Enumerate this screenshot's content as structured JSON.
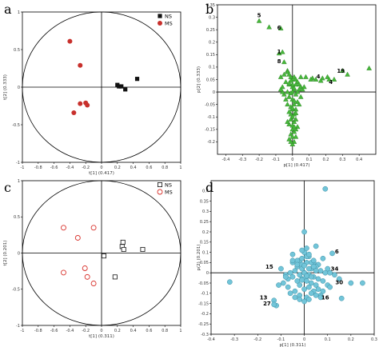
{
  "chart_data": [
    {
      "type": "scatter",
      "panel_label": "a",
      "xlabel": "t[1] (0.417)",
      "ylabel": "t[2] (0.333)",
      "xlim": [
        -1,
        1
      ],
      "ylim": [
        -1,
        1
      ],
      "xticks": [
        -1,
        -0.8,
        -0.6,
        -0.4,
        -0.2,
        0,
        0.2,
        0.4,
        0.6,
        0.8,
        1
      ],
      "yticks": [
        -1,
        -0.5,
        0,
        0.5,
        1
      ],
      "ellipse": "unit-circle",
      "legend_position": "top-right",
      "series": [
        {
          "name": "NS",
          "marker": "square",
          "color": "#111111",
          "x": [
            0.2,
            0.22,
            0.25,
            0.3,
            0.45
          ],
          "y": [
            0.03,
            0.01,
            0.01,
            -0.03,
            0.11
          ]
        },
        {
          "name": "MS",
          "marker": "circle",
          "color": "#c8302c",
          "x": [
            -0.4,
            -0.27,
            -0.27,
            -0.2,
            -0.18,
            -0.35
          ],
          "y": [
            0.61,
            0.29,
            -0.22,
            -0.21,
            -0.24,
            -0.34
          ]
        }
      ]
    },
    {
      "type": "scatter",
      "panel_label": "b",
      "xlabel": "p[1] (0.417)",
      "ylabel": "p[2] (0.333)",
      "xlim": [
        -0.45,
        0.5
      ],
      "ylim": [
        -0.25,
        0.35
      ],
      "xticks": [
        -0.4,
        -0.3,
        -0.2,
        -0.1,
        0,
        0.1,
        0.2,
        0.3,
        0.4
      ],
      "yticks": [
        -0.2,
        -0.15,
        -0.1,
        -0.05,
        0,
        0.05,
        0.1,
        0.15,
        0.2,
        0.25,
        0.3,
        0.35
      ],
      "marker": "triangle",
      "color": "#46b83a",
      "annotations": [
        {
          "text": "5",
          "x": -0.2,
          "y": 0.3
        },
        {
          "text": "6",
          "x": -0.08,
          "y": 0.25
        },
        {
          "text": "1",
          "x": -0.08,
          "y": 0.155
        },
        {
          "text": "8",
          "x": -0.08,
          "y": 0.115
        },
        {
          "text": "4",
          "x": 0.155,
          "y": 0.055
        },
        {
          "text": "19",
          "x": 0.29,
          "y": 0.078
        },
        {
          "text": "4",
          "x": 0.23,
          "y": 0.032
        }
      ],
      "points": {
        "x": [
          -0.2,
          -0.14,
          -0.07,
          -0.08,
          -0.06,
          -0.05,
          -0.03,
          0.05,
          0.08,
          0.12,
          0.14,
          0.18,
          0.21,
          0.25,
          0.3,
          0.33,
          0.46,
          0.22,
          0.17,
          0.11,
          -0.07,
          -0.05,
          -0.03,
          -0.02,
          -0.01,
          0.0,
          0.01,
          0.02,
          0.03,
          0.04,
          0.05,
          -0.04,
          -0.02,
          0.0,
          0.02,
          0.04,
          -0.06,
          -0.03,
          0.01,
          0.03,
          -0.05,
          -0.02,
          0.02,
          0.05,
          -0.04,
          0.0,
          0.03,
          -0.03,
          0.01,
          -0.01,
          0.0,
          0.02,
          -0.02,
          -0.01,
          0.01,
          0.04,
          -0.06,
          0.06,
          0.07,
          -0.07,
          0.0,
          -0.01,
          0.01,
          0.02,
          -0.02,
          0.03,
          -0.03,
          0.0,
          0.01,
          -0.01,
          0.02,
          0.0,
          -0.02,
          0.01,
          0.0,
          -0.01,
          0.02,
          0.0,
          0.01,
          -0.01,
          0.0,
          0.01,
          -0.01,
          0.0,
          0.02,
          -0.02,
          0.0,
          0.01
        ],
        "y": [
          0.285,
          0.26,
          0.255,
          0.155,
          0.16,
          0.12,
          0.085,
          0.06,
          0.06,
          0.055,
          0.05,
          0.055,
          0.06,
          0.05,
          0.085,
          0.07,
          0.095,
          0.05,
          0.045,
          0.05,
          0.06,
          0.07,
          0.08,
          0.07,
          0.06,
          0.05,
          0.06,
          0.05,
          0.04,
          0.03,
          0.02,
          0.04,
          0.03,
          0.02,
          0.03,
          0.01,
          0.02,
          0.0,
          0.01,
          0.0,
          -0.01,
          -0.02,
          -0.01,
          -0.02,
          -0.03,
          -0.03,
          -0.04,
          -0.05,
          -0.05,
          -0.06,
          -0.07,
          -0.07,
          -0.08,
          -0.09,
          -0.09,
          -0.05,
          0.0,
          0.01,
          0.02,
          0.01,
          -0.1,
          -0.11,
          -0.12,
          -0.11,
          -0.13,
          -0.14,
          -0.12,
          -0.15,
          -0.16,
          -0.17,
          -0.15,
          -0.18,
          -0.19,
          -0.2,
          -0.21,
          -0.2,
          -0.18,
          0.0,
          0.015,
          -0.005,
          0.03,
          -0.035,
          0.045,
          -0.065,
          -0.085,
          0.035,
          -0.135,
          -0.14
        ]
      }
    },
    {
      "type": "scatter",
      "panel_label": "c",
      "xlabel": "t[1] (0.311)",
      "ylabel": "t[2] (0.201)",
      "xlim": [
        -1,
        1
      ],
      "ylim": [
        -1,
        1
      ],
      "xticks": [
        -1,
        -0.8,
        -0.6,
        -0.4,
        -0.2,
        0,
        0.2,
        0.4,
        0.6,
        0.8,
        1
      ],
      "yticks": [
        -1,
        -0.5,
        0,
        0.5,
        1
      ],
      "ellipse": "unit-circle",
      "legend_position": "top-right",
      "series": [
        {
          "name": "NS",
          "marker": "open-square",
          "color": "#111111",
          "x": [
            0.27,
            0.26,
            0.28,
            0.52,
            0.03,
            0.17
          ],
          "y": [
            0.15,
            0.09,
            0.05,
            0.05,
            -0.04,
            -0.33
          ]
        },
        {
          "name": "MS",
          "marker": "open-circle",
          "color": "#d8312b",
          "x": [
            -0.48,
            -0.1,
            -0.3,
            -0.21,
            -0.48,
            -0.18,
            -0.1
          ],
          "y": [
            0.35,
            0.35,
            0.21,
            -0.21,
            -0.27,
            -0.33,
            -0.42
          ]
        }
      ]
    },
    {
      "type": "scatter",
      "panel_label": "d",
      "xlabel": "p[1] (0.311)",
      "ylabel": "p(2) (0.201)",
      "xlim": [
        -0.4,
        0.3
      ],
      "ylim": [
        -0.3,
        0.45
      ],
      "xticks": [
        -0.4,
        -0.3,
        -0.2,
        -0.1,
        0,
        0.1,
        0.2,
        0.3
      ],
      "yticks": [
        -0.3,
        -0.25,
        -0.2,
        -0.15,
        -0.1,
        -0.05,
        0,
        0.05,
        0.1,
        0.15,
        0.2,
        0.25,
        0.3,
        0.35,
        0.4
      ],
      "marker": "circle",
      "color": "#72c5d9",
      "annotations": [
        {
          "text": "6",
          "x": 0.14,
          "y": 0.095
        },
        {
          "text": "15",
          "x": -0.15,
          "y": 0.02
        },
        {
          "text": "34",
          "x": 0.13,
          "y": 0.01
        },
        {
          "text": "30",
          "x": 0.15,
          "y": -0.055
        },
        {
          "text": "13",
          "x": -0.175,
          "y": -0.13
        },
        {
          "text": "27",
          "x": -0.16,
          "y": -0.16
        },
        {
          "text": "16",
          "x": 0.09,
          "y": -0.13
        }
      ],
      "points": {
        "x": [
          0.09,
          0.0,
          0.05,
          0.12,
          -0.05,
          0.02,
          0.08,
          -0.02,
          0.04,
          0.1,
          0.15,
          0.2,
          0.25,
          -0.1,
          -0.13,
          -0.32,
          -0.12,
          -0.13,
          0.07,
          0.16,
          0.06,
          0.11,
          0.13,
          0.01,
          -0.01,
          -0.03,
          0.03,
          0.05,
          0.07,
          0.09,
          -0.06,
          -0.08,
          -0.04,
          0.0,
          0.02,
          0.04,
          0.06,
          0.08,
          0.1,
          -0.07,
          -0.05,
          -0.03,
          -0.01,
          0.01,
          0.03,
          0.05,
          -0.09,
          -0.07,
          -0.02,
          0.0,
          0.02,
          0.04,
          0.06,
          -0.06,
          -0.04,
          -0.02,
          0.01,
          0.03,
          0.05,
          0.07,
          -0.03,
          -0.01,
          0.01,
          0.03,
          -0.05,
          0.0,
          0.02,
          0.04,
          -0.02,
          0.0,
          0.02,
          -0.01,
          0.01,
          0.0,
          -0.04,
          0.04,
          0.08,
          -0.08,
          0.11,
          -0.11,
          0.0,
          0.02,
          -0.02,
          0.01,
          -0.01,
          0.03,
          -0.03,
          0.05,
          -0.05,
          0.0,
          0.01,
          -0.01
        ],
        "y": [
          0.41,
          0.2,
          0.13,
          0.095,
          0.09,
          0.08,
          0.07,
          0.06,
          0.05,
          0.02,
          -0.03,
          -0.05,
          -0.05,
          0.02,
          -0.135,
          -0.045,
          -0.16,
          -0.155,
          -0.11,
          -0.125,
          0.04,
          0.0,
          -0.01,
          0.05,
          0.04,
          0.03,
          0.02,
          0.03,
          0.01,
          0.0,
          0.0,
          -0.01,
          0.01,
          0.0,
          -0.01,
          -0.02,
          -0.03,
          -0.04,
          -0.06,
          -0.03,
          -0.02,
          -0.04,
          -0.03,
          -0.02,
          -0.05,
          -0.06,
          -0.05,
          -0.07,
          -0.06,
          -0.08,
          -0.07,
          -0.09,
          -0.08,
          -0.1,
          -0.09,
          -0.11,
          -0.12,
          -0.1,
          -0.11,
          -0.12,
          0.06,
          0.07,
          0.08,
          0.05,
          0.05,
          0.1,
          0.09,
          0.03,
          -0.13,
          -0.14,
          -0.13,
          0.11,
          0.12,
          0.0,
          -0.12,
          0.06,
          -0.09,
          -0.02,
          -0.07,
          -0.06,
          -0.03,
          0.02,
          -0.01,
          -0.04,
          0.02,
          -0.02,
          0.04,
          0.01,
          0.06,
          0.035,
          -0.015,
          -0.035
        ]
      }
    }
  ]
}
